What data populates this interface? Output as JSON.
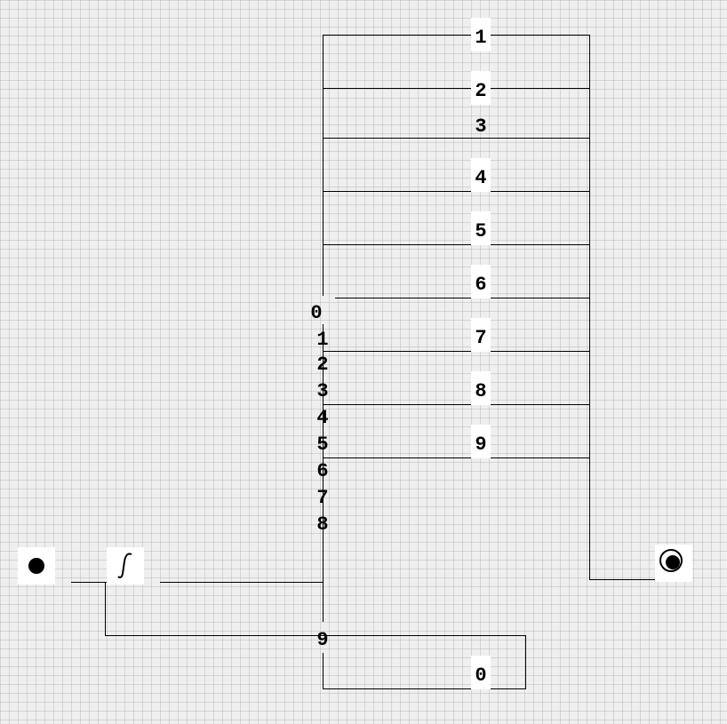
{
  "diagram": {
    "nodes": {
      "start": {
        "icon": "initial-state-icon"
      },
      "choice": {
        "icon": "integral-choice-icon"
      },
      "final": {
        "icon": "final-state-icon"
      }
    },
    "branch_labels": [
      "1",
      "2",
      "3",
      "4",
      "5",
      "6",
      "7",
      "8",
      "9",
      "0"
    ],
    "index_labels": [
      "0",
      "1",
      "2",
      "3",
      "4",
      "5",
      "6",
      "7",
      "8",
      "9"
    ],
    "colors": {
      "line": "#000000",
      "background": "#efefef",
      "label_box": "#ffffff"
    }
  }
}
